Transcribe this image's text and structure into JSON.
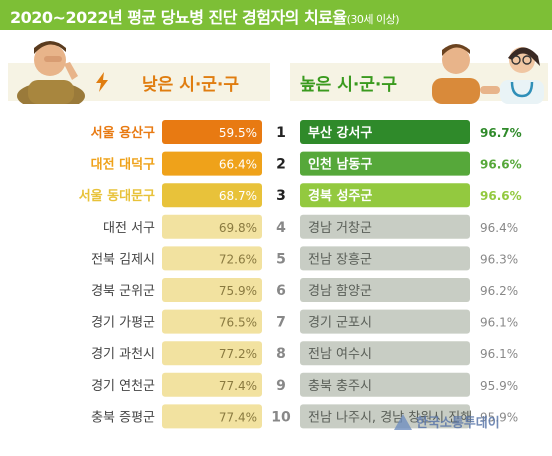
{
  "header": {
    "title": "2020~2022년 평균 당뇨병 진단 경험자의 치료율",
    "subtitle": "(30세 이상)"
  },
  "labels": {
    "low": "낮은 시·군·구",
    "high": "높은 시·군·구"
  },
  "watermark": "한국소통투데이",
  "colors": {
    "header": "#7dbf36",
    "low_top": [
      "#e87a12",
      "#efa21a",
      "#e8c23a"
    ],
    "low_rest": "#f2e2a0",
    "high_top": [
      "#2f8a2a",
      "#56a83a",
      "#93c93f"
    ],
    "high_rest": "#c8cdc4"
  },
  "chart_data": {
    "type": "table",
    "ranks": [
      1,
      2,
      3,
      4,
      5,
      6,
      7,
      8,
      9,
      10
    ],
    "low": [
      {
        "region": "서울 용산구",
        "value": 59.5
      },
      {
        "region": "대전 대덕구",
        "value": 66.4
      },
      {
        "region": "서울 동대문구",
        "value": 68.7
      },
      {
        "region": "대전 서구",
        "value": 69.8
      },
      {
        "region": "전북 김제시",
        "value": 72.6
      },
      {
        "region": "경북 군위군",
        "value": 75.9
      },
      {
        "region": "경기 가평군",
        "value": 76.5
      },
      {
        "region": "경기 과천시",
        "value": 77.2
      },
      {
        "region": "경기 연천군",
        "value": 77.4
      },
      {
        "region": "충북 증평군",
        "value": 77.4
      }
    ],
    "high": [
      {
        "region": "부산 강서구",
        "value": 96.7
      },
      {
        "region": "인천 남동구",
        "value": 96.6
      },
      {
        "region": "경북 성주군",
        "value": 96.6
      },
      {
        "region": "경남 거창군",
        "value": 96.4
      },
      {
        "region": "전남 장흥군",
        "value": 96.3
      },
      {
        "region": "경남 함양군",
        "value": 96.2
      },
      {
        "region": "경기 군포시",
        "value": 96.1
      },
      {
        "region": "전남 여수시",
        "value": 96.1
      },
      {
        "region": "충북 충주시",
        "value": 95.9
      },
      {
        "region": "전남 나주시, 경남 창원시 진해",
        "value": 95.9
      }
    ],
    "unit": "%"
  }
}
